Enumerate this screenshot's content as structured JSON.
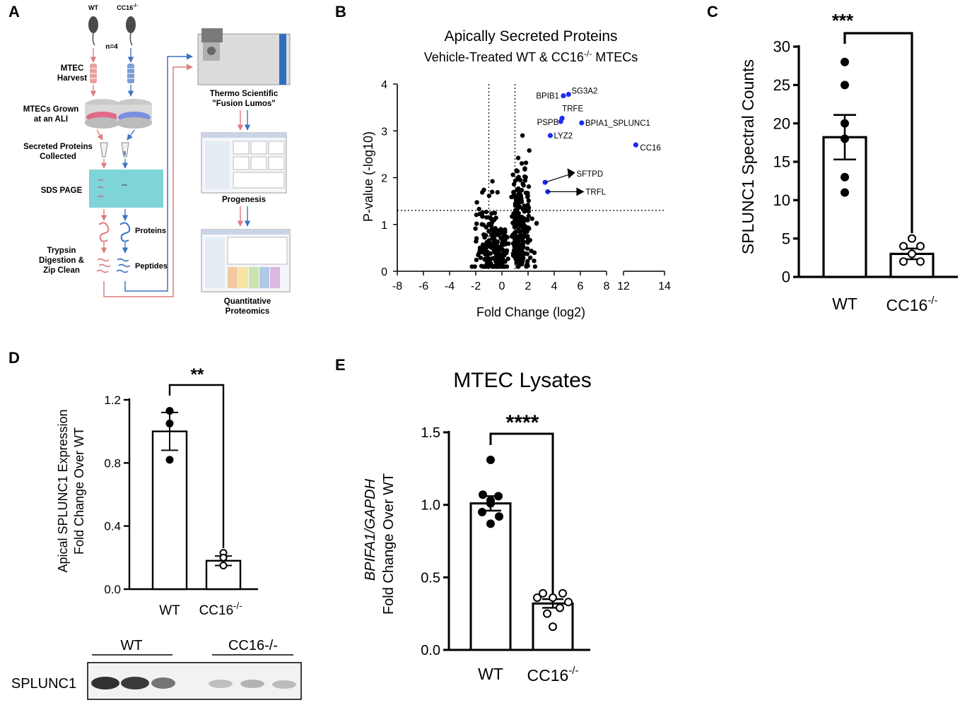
{
  "panels": {
    "a": "A",
    "b": "B",
    "c": "C",
    "d": "D",
    "e": "E"
  },
  "workflow": {
    "mouse_wt": "WT",
    "mouse_ko": "CC16",
    "mouse_ko_sup": "-/-",
    "n": "n=4",
    "steps": [
      {
        "l1": "MTEC",
        "l2": "Harvest"
      },
      {
        "l1": "MTECs Grown",
        "l2": "at an ALI"
      },
      {
        "l1": "Secreted Proteins",
        "l2": "Collected"
      },
      {
        "l1": "SDS PAGE",
        "l2": ""
      },
      {
        "l1": "Trypsin",
        "l2": "Digestion &"
      },
      {
        "l1": "Zip Clean",
        "l2": ""
      }
    ],
    "proteins_label": "Proteins",
    "peptides_label": "Peptides",
    "instrument_l1": "Thermo Scientific",
    "instrument_l2": "\"Fusion Lumos\"",
    "software": "Progenesis",
    "result_l1": "Quantitative",
    "result_l2": "Proteomics"
  },
  "volcano": {
    "title": "Apically Secreted Proteins",
    "subtitle_pre": "Vehicle-Treated WT & CC16",
    "subtitle_sup": "-/-",
    "subtitle_post": " MTECs",
    "xlabel": "Fold Change (log2)",
    "ylabel": "P-value (-log10)",
    "xticks": [
      "-8",
      "-6",
      "-4",
      "-2",
      "0",
      "2",
      "4",
      "6",
      "8",
      "12",
      "14"
    ],
    "yticks": [
      "0",
      "1",
      "2",
      "3",
      "4"
    ],
    "labels": [
      "BPIB1",
      "SG3A2",
      "TRFE",
      "PSPB",
      "BPIA1_SPLUNC1",
      "LYZ2",
      "CC16",
      "SFTPD",
      "TRFL"
    ]
  },
  "chart_data": [
    {
      "type": "scatter",
      "panel": "B",
      "title": "Apically Secreted Proteins",
      "subtitle": "Vehicle-Treated WT & CC16-/- MTECs",
      "xlabel": "Fold Change (log2)",
      "ylabel": "P-value (-log10)",
      "xlim": [
        -8,
        14
      ],
      "ylim": [
        0,
        4
      ],
      "axis_break": [
        8,
        12
      ],
      "thresholds": {
        "x": [
          -1,
          1
        ],
        "y": 1.3
      },
      "highlighted": [
        {
          "name": "BPIB1",
          "x": 4.7,
          "y": 3.75
        },
        {
          "name": "SG3A2",
          "x": 5.1,
          "y": 3.78
        },
        {
          "name": "TRFE",
          "x": 4.6,
          "y": 3.27
        },
        {
          "name": "PSPB",
          "x": 4.5,
          "y": 3.2
        },
        {
          "name": "BPIA1_SPLUNC1",
          "x": 6.1,
          "y": 3.17
        },
        {
          "name": "LYZ2",
          "x": 3.7,
          "y": 2.9
        },
        {
          "name": "CC16",
          "x": 12.6,
          "y": 2.7
        },
        {
          "name": "SFTPD",
          "x": 3.3,
          "y": 1.9
        },
        {
          "name": "TRFL",
          "x": 3.5,
          "y": 1.7
        }
      ],
      "background_points_note": "~500 other identified proteins, mostly between x=-4 and 4"
    },
    {
      "type": "bar",
      "panel": "C",
      "categories": [
        "WT",
        "CC16-/-"
      ],
      "values": [
        18.2,
        3.0
      ],
      "sem": [
        2.9,
        0.7
      ],
      "points": [
        [
          28,
          25,
          20,
          18,
          13,
          11
        ],
        [
          5,
          4,
          4,
          3,
          2,
          2
        ]
      ],
      "ylabel": "SPLUNC1 Spectral Counts",
      "yticks": [
        0,
        5,
        10,
        15,
        20,
        25,
        30
      ],
      "ylim": [
        0,
        30
      ],
      "significance": "***"
    },
    {
      "type": "bar",
      "panel": "D",
      "categories": [
        "WT",
        "CC16-/-"
      ],
      "values": [
        1.0,
        0.18
      ],
      "sem": [
        0.12,
        0.03
      ],
      "points": [
        [
          1.13,
          1.05,
          0.82
        ],
        [
          0.23,
          0.2,
          0.15
        ]
      ],
      "ylabel": "Apical SPLUNC1 Expression Fold Change Over WT",
      "yticks": [
        0.0,
        0.4,
        0.8,
        1.2
      ],
      "ylim": [
        0,
        1.2
      ],
      "significance": "**"
    },
    {
      "type": "bar",
      "panel": "E",
      "title": "MTEC Lysates",
      "categories": [
        "WT",
        "CC16-/-"
      ],
      "values": [
        1.01,
        0.32
      ],
      "sem": [
        0.05,
        0.03
      ],
      "points": [
        [
          1.31,
          1.07,
          1.06,
          1.03,
          1.01,
          0.95,
          0.92,
          0.87
        ],
        [
          0.39,
          0.39,
          0.36,
          0.36,
          0.33,
          0.29,
          0.25,
          0.16
        ]
      ],
      "ylabel": "BPIFA1/GAPDH Fold Change Over WT",
      "yticks": [
        0.0,
        0.5,
        1.0,
        1.5
      ],
      "ylim": [
        0,
        1.5
      ],
      "significance": "****"
    }
  ],
  "panel_c": {
    "ylabel": "SPLUNC1 Spectral Counts",
    "yticks": [
      "0",
      "5",
      "10",
      "15",
      "20",
      "25",
      "30"
    ],
    "x_wt": "WT",
    "x_ko": "CC16",
    "x_ko_sup": "-/-",
    "sig": "***"
  },
  "panel_d": {
    "ylabel_l1": "Apical SPLUNC1 Expression",
    "ylabel_l2": "Fold Change Over WT",
    "yticks": [
      "0.0",
      "0.4",
      "0.8",
      "1.2"
    ],
    "x_wt": "WT",
    "x_ko": "CC16",
    "x_ko_sup": "-/-",
    "sig": "**",
    "blot": {
      "group_wt": "WT",
      "group_ko": "CC16-/-",
      "row_label": "SPLUNC1"
    }
  },
  "panel_e": {
    "title": "MTEC Lysates",
    "ylabel_l1": "BPIFA1/GAPDH",
    "ylabel_l2": "Fold Change Over WT",
    "yticks": [
      "0.0",
      "0.5",
      "1.0",
      "1.5"
    ],
    "x_wt": "WT",
    "x_ko": "CC16",
    "x_ko_sup": "-/-",
    "sig": "****"
  }
}
